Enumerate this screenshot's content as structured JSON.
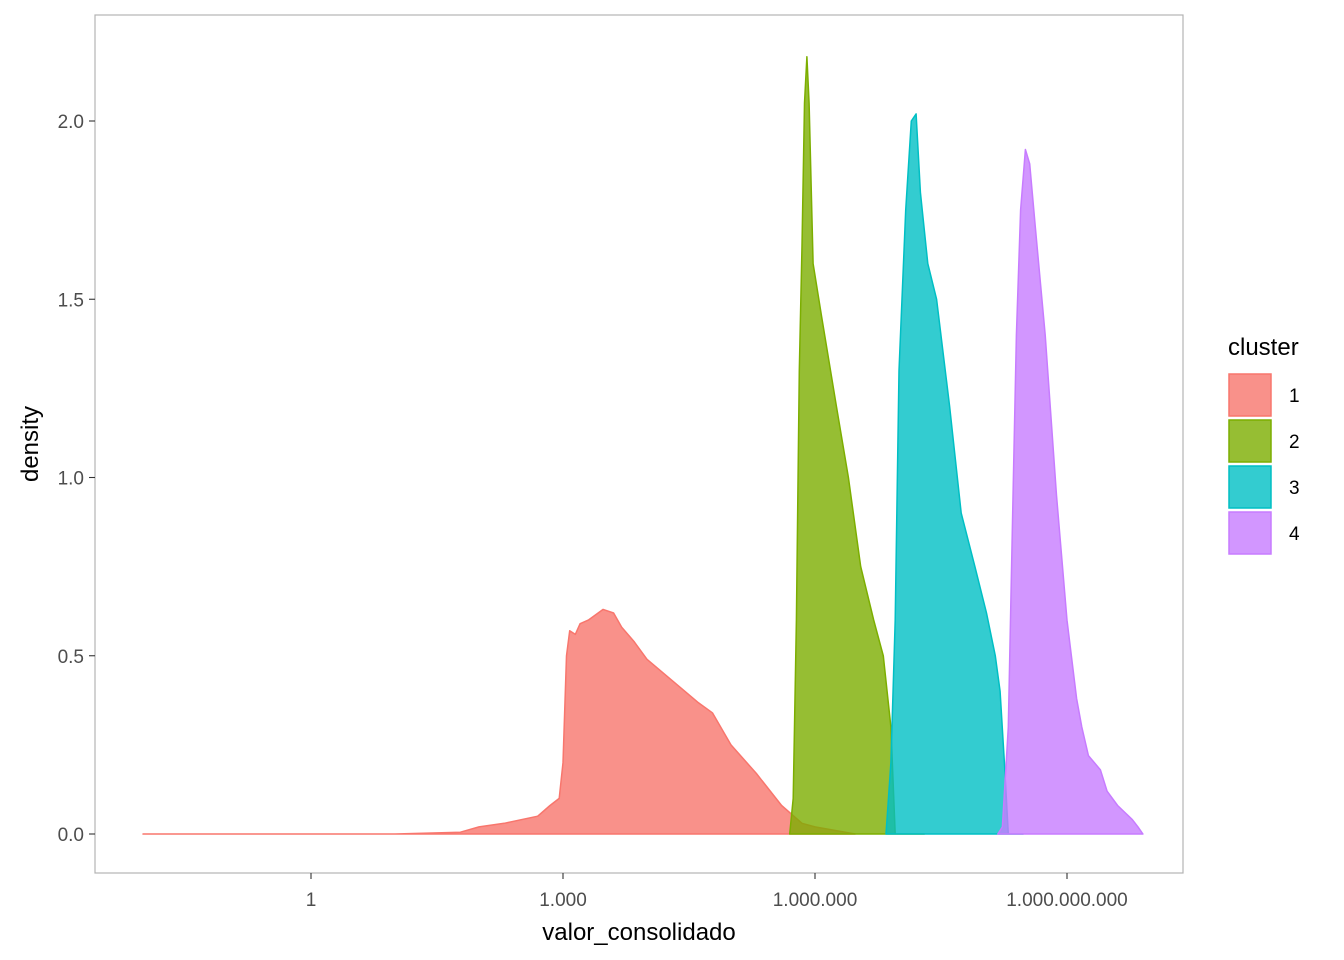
{
  "chart_data": {
    "type": "area",
    "subtype": "density",
    "xlabel": "valor_consolidado",
    "ylabel": "density",
    "x_scale": "log10",
    "xlim": [
      0.01,
      8000000000
    ],
    "ylim": [
      -0.1,
      2.25
    ],
    "x_ticks": [
      {
        "value": 1,
        "label": "1"
      },
      {
        "value": 1000,
        "label": "1.000"
      },
      {
        "value": 1000000,
        "label": "1.000.000"
      },
      {
        "value": 1000000000,
        "label": "1.000.000.000"
      }
    ],
    "y_ticks": [
      {
        "value": 0,
        "label": "0.0"
      },
      {
        "value": 0.5,
        "label": "0.5"
      },
      {
        "value": 1.0,
        "label": "1.0"
      },
      {
        "value": 1.5,
        "label": "1.5"
      },
      {
        "value": 2.0,
        "label": "2.0"
      }
    ],
    "grid": false,
    "legend": {
      "title": "cluster",
      "position": "right"
    },
    "series": [
      {
        "name": "1",
        "fill": "#F8766D",
        "points": [
          [
            0.01,
            0
          ],
          [
            10,
            0
          ],
          [
            60,
            0.005
          ],
          [
            100,
            0.02
          ],
          [
            200,
            0.03
          ],
          [
            500,
            0.05
          ],
          [
            700,
            0.08
          ],
          [
            900,
            0.1
          ],
          [
            1000,
            0.2
          ],
          [
            1100,
            0.5
          ],
          [
            1200,
            0.57
          ],
          [
            1400,
            0.56
          ],
          [
            1600,
            0.59
          ],
          [
            2000,
            0.6
          ],
          [
            3000,
            0.63
          ],
          [
            4000,
            0.62
          ],
          [
            5000,
            0.58
          ],
          [
            7000,
            0.54
          ],
          [
            10000,
            0.49
          ],
          [
            20000,
            0.43
          ],
          [
            40000,
            0.37
          ],
          [
            60000,
            0.34
          ],
          [
            100000,
            0.25
          ],
          [
            200000,
            0.17
          ],
          [
            400000,
            0.08
          ],
          [
            700000,
            0.03
          ],
          [
            1000000,
            0.02
          ],
          [
            3000000,
            0
          ]
        ]
      },
      {
        "name": "2",
        "fill": "#7CAE00",
        "points": [
          [
            500000,
            0
          ],
          [
            550000,
            0.1
          ],
          [
            600000,
            0.6
          ],
          [
            650000,
            1.3
          ],
          [
            700000,
            1.65
          ],
          [
            750000,
            2.05
          ],
          [
            800000,
            2.18
          ],
          [
            850000,
            2.05
          ],
          [
            950000,
            1.6
          ],
          [
            1200000,
            1.45
          ],
          [
            1800000,
            1.2
          ],
          [
            2500000,
            1.0
          ],
          [
            3500000,
            0.75
          ],
          [
            5000000,
            0.6
          ],
          [
            6500000,
            0.5
          ],
          [
            8000000,
            0.3
          ],
          [
            9000000,
            0
          ],
          [
            20000000,
            0
          ]
        ]
      },
      {
        "name": "3",
        "fill": "#00BFC4",
        "points": [
          [
            7000000,
            0
          ],
          [
            8000000,
            0.2
          ],
          [
            9000000,
            0.6
          ],
          [
            10000000,
            1.3
          ],
          [
            12000000,
            1.75
          ],
          [
            14000000,
            2.0
          ],
          [
            16000000,
            2.02
          ],
          [
            18000000,
            1.8
          ],
          [
            22000000,
            1.6
          ],
          [
            28000000,
            1.5
          ],
          [
            40000000,
            1.2
          ],
          [
            55000000,
            0.9
          ],
          [
            80000000,
            0.75
          ],
          [
            110000000,
            0.62
          ],
          [
            140000000,
            0.5
          ],
          [
            160000000,
            0.4
          ],
          [
            180000000,
            0.2
          ],
          [
            200000000,
            0
          ],
          [
            300000000,
            0
          ]
        ]
      },
      {
        "name": "4",
        "fill": "#C77CFF",
        "points": [
          [
            150000000,
            0
          ],
          [
            170000000,
            0.02
          ],
          [
            200000000,
            0.3
          ],
          [
            230000000,
            1.0
          ],
          [
            250000000,
            1.4
          ],
          [
            280000000,
            1.75
          ],
          [
            320000000,
            1.92
          ],
          [
            360000000,
            1.88
          ],
          [
            420000000,
            1.7
          ],
          [
            550000000,
            1.4
          ],
          [
            750000000,
            0.95
          ],
          [
            1000000000,
            0.6
          ],
          [
            1300000000,
            0.38
          ],
          [
            1500000000,
            0.3
          ],
          [
            1800000000,
            0.22
          ],
          [
            2500000000,
            0.18
          ],
          [
            3000000000,
            0.12
          ],
          [
            4000000000,
            0.08
          ],
          [
            6000000000,
            0.04
          ],
          [
            7000000000,
            0.02
          ],
          [
            8000000000,
            0
          ]
        ]
      }
    ]
  }
}
